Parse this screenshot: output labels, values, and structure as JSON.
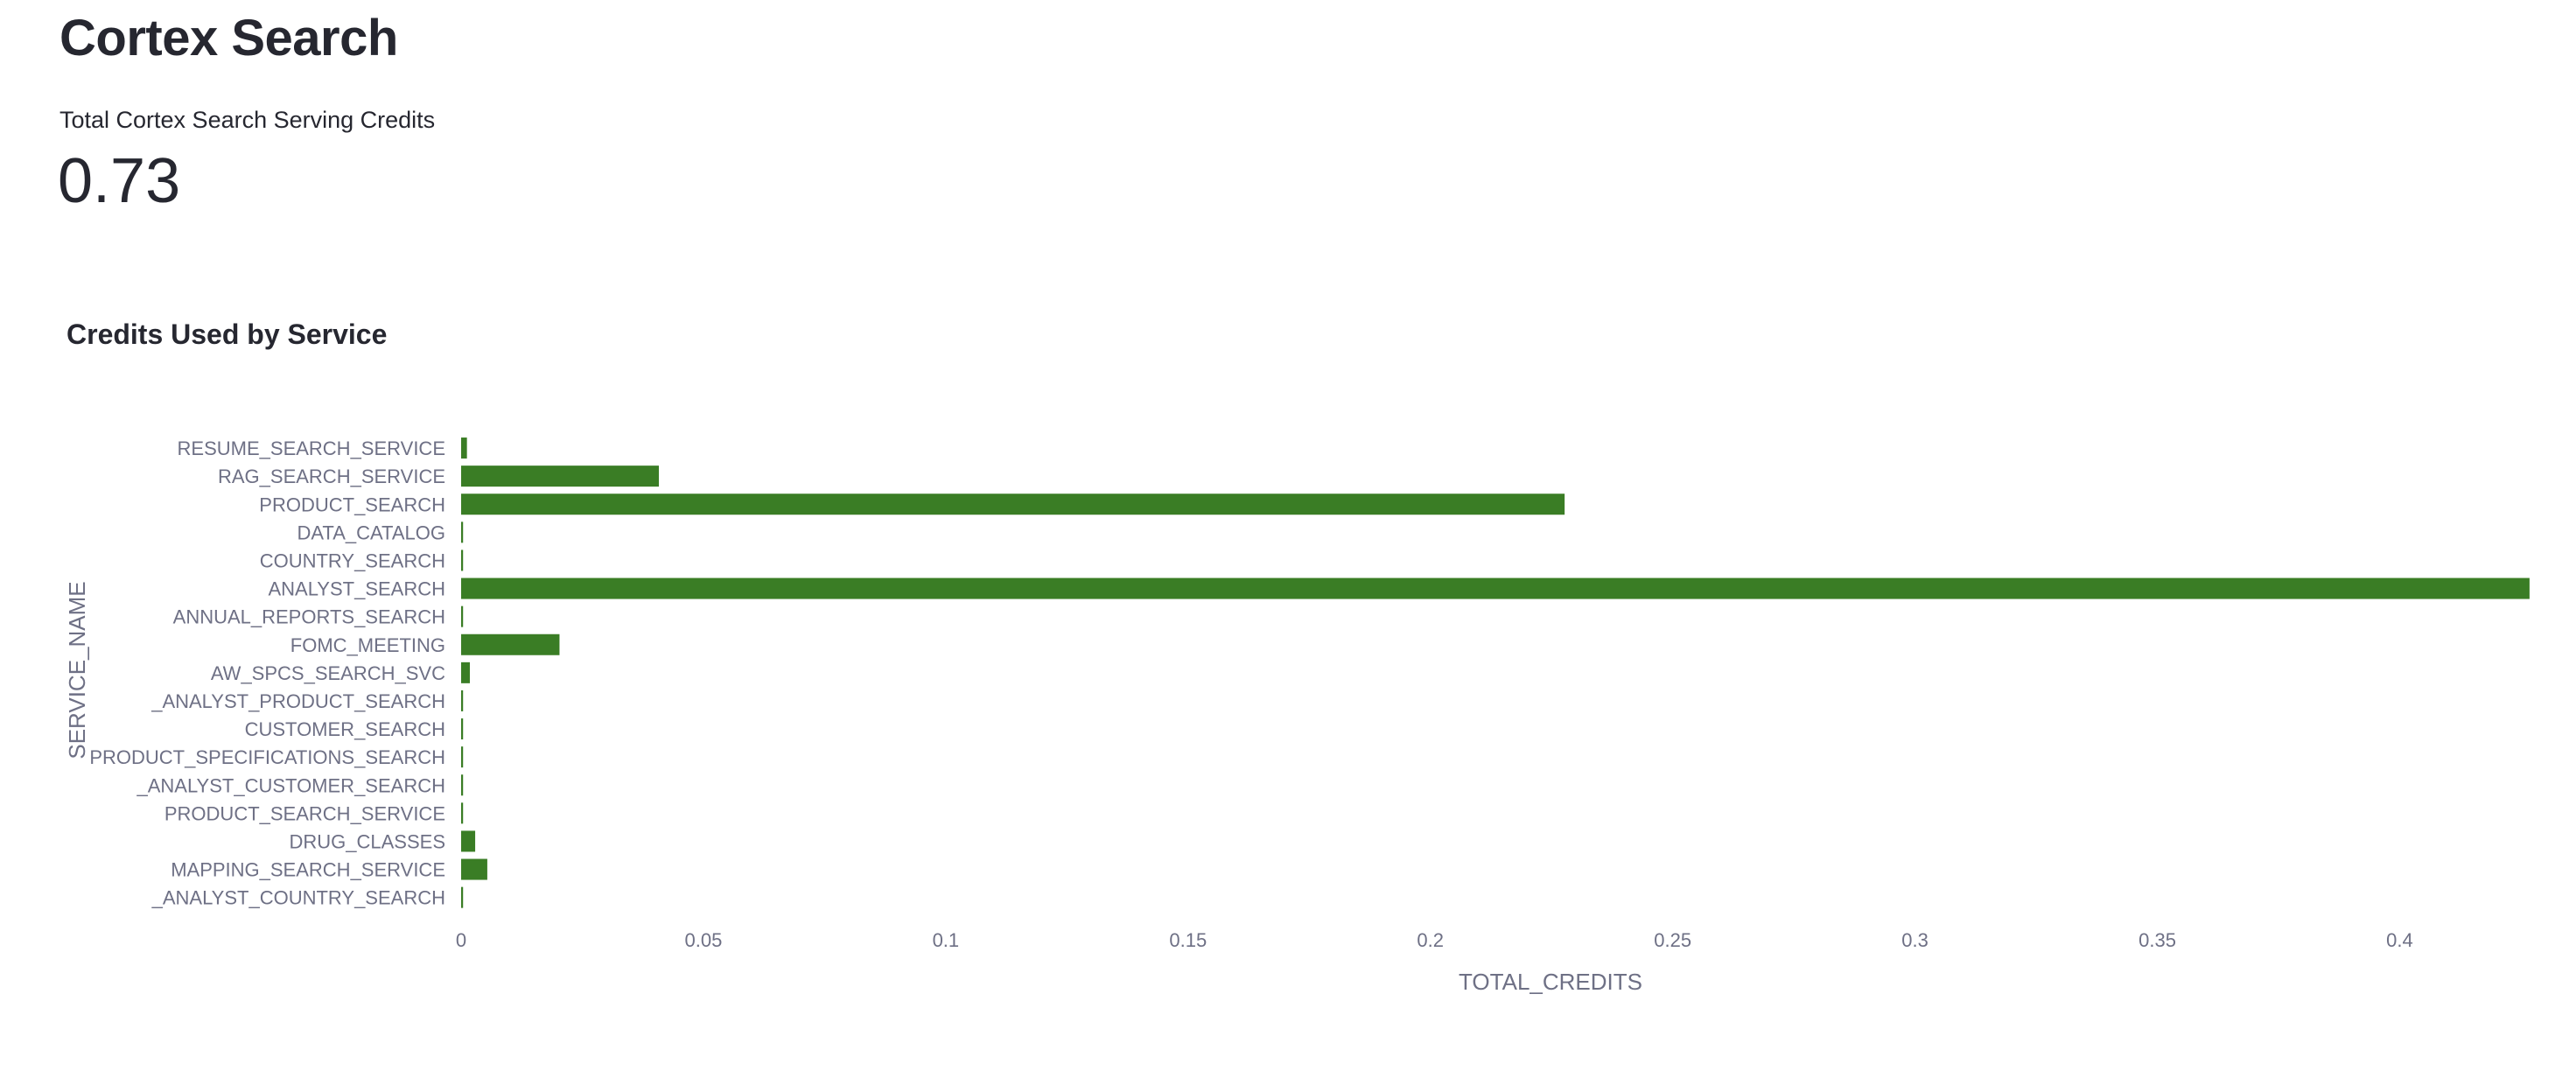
{
  "page": {
    "title": "Cortex Search"
  },
  "metric": {
    "label": "Total Cortex Search Serving Credits",
    "value": "0.73"
  },
  "chart_data": {
    "type": "bar",
    "orientation": "horizontal",
    "title": "Credits Used by Service",
    "xlabel": "TOTAL_CREDITS",
    "ylabel": "SERVICE_NAME",
    "xlim": [
      0,
      0.427
    ],
    "xticks": [
      0,
      0.05,
      0.1,
      0.15,
      0.2,
      0.25,
      0.3,
      0.35,
      0.4
    ],
    "xtick_labels": [
      "0",
      "0.05",
      "0.1",
      "0.15",
      "0.2",
      "0.25",
      "0.3",
      "0.35",
      "0.4"
    ],
    "grid": false,
    "bar_color": "#3a7d25",
    "categories": [
      "RESUME_SEARCH_SERVICE",
      "RAG_SEARCH_SERVICE",
      "PRODUCT_SEARCH",
      "DATA_CATALOG",
      "COUNTRY_SEARCH",
      "ANALYST_SEARCH",
      "ANNUAL_REPORTS_SEARCH",
      "FOMC_MEETING",
      "AW_SPCS_SEARCH_SVC",
      "_ANALYST_PRODUCT_SEARCH",
      "CUSTOMER_SEARCH",
      "PRODUCT_SPECIFICATIONS_SEARCH",
      "_ANALYST_CUSTOMER_SEARCH",
      "PRODUCT_SEARCH_SERVICE",
      "DRUG_CLASSES",
      "MAPPING_SEARCH_SERVICE",
      "_ANALYST_COUNTRY_SEARCH"
    ],
    "values": [
      0.0012,
      0.0408,
      0.2277,
      0.0004,
      0.0004,
      0.4268,
      0.0004,
      0.0203,
      0.0018,
      0.0004,
      0.0004,
      0.0004,
      0.0004,
      0.0004,
      0.0029,
      0.0054,
      0.0004
    ]
  }
}
